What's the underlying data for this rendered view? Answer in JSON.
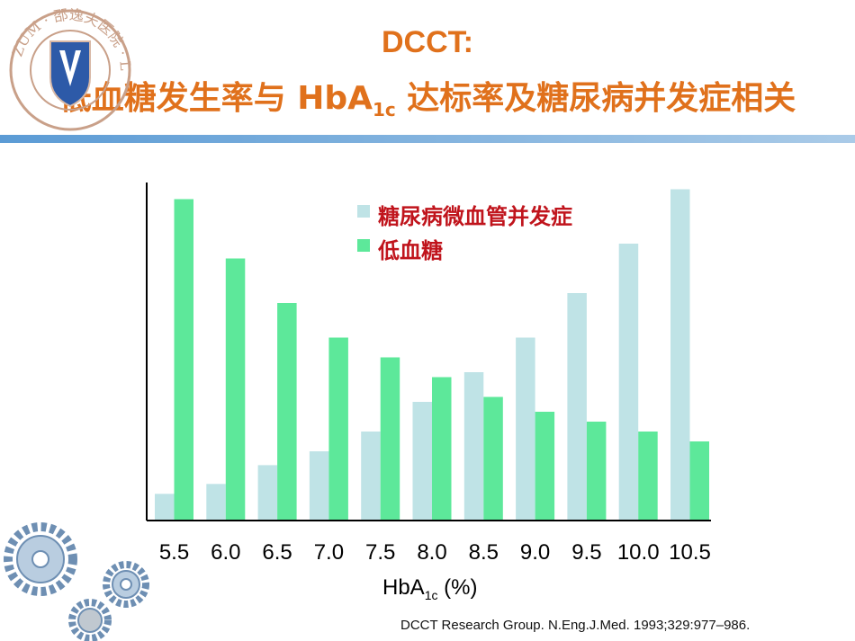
{
  "title": "DCCT:",
  "subtitle_part1": "低血糖发生率与 HbA",
  "subtitle_sub": "1c",
  "subtitle_part2": " 达标率及糖尿病并发症相关",
  "logo_text": "ZUM · 邵逸夫医院 · L",
  "xlabel_main": "HbA",
  "xlabel_sub": "1c",
  "xlabel_unit": " (%)",
  "source": "DCCT Research Group. N.Eng.J.Med. 1993;329:977–986.",
  "colors": {
    "microvascular": "#bfe3e6",
    "hypoglycemia": "#5de89a",
    "title": "#e0711c",
    "legend": "#c0141c"
  },
  "chart_data": {
    "type": "bar",
    "categories": [
      "5.5",
      "6.0",
      "6.5",
      "7.0",
      "7.5",
      "8.0",
      "8.5",
      "9.0",
      "9.5",
      "10.0",
      "10.5"
    ],
    "series": [
      {
        "name": "糖尿病微血管并发症",
        "values": [
          2.7,
          3.7,
          5.6,
          7.0,
          9.0,
          12.0,
          15.0,
          18.5,
          23.0,
          28.0,
          33.5
        ]
      },
      {
        "name": "低血糖",
        "values": [
          32.5,
          26.5,
          22.0,
          18.5,
          16.5,
          14.5,
          12.5,
          11.0,
          10.0,
          9.0,
          8.0
        ]
      }
    ],
    "ylim": [
      0,
      34
    ],
    "legend_position": "top-right",
    "grid": false
  }
}
